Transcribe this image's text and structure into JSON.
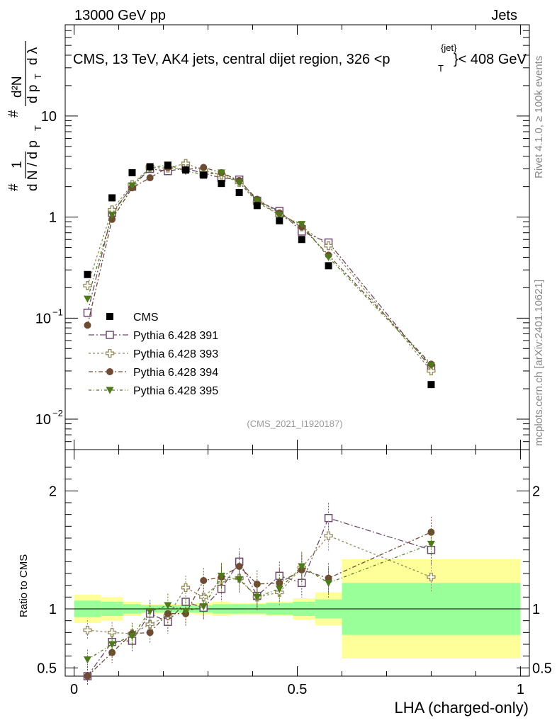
{
  "header": {
    "left": "13000 GeV pp",
    "right": "Jets",
    "title": "CMS, 13 TeV, AK4 jets, central dijet region, 326 <p",
    "title_sub": "T",
    "title_sup": "{jet}",
    "title_end": "}< 408 GeV",
    "rivet": "Rivet 4.1.0, ≥ 100k events",
    "mcplots": "mcplots.cern.ch [arXiv:2401.10621]",
    "analysis_id": "(CMS_2021_I1920187)"
  },
  "chart_data": {
    "type": "scatter",
    "xlabel": "LHA (charged-only)",
    "ylabel_main": "1/(dN/dpT) d²N/(dpT dλ)",
    "ylabel_ratio": "Ratio to CMS",
    "xlim": [
      -0.02,
      1.02
    ],
    "ylim_main": [
      0.005,
      80
    ],
    "ylim_ratio": [
      0.43,
      2.35
    ],
    "x_ticks": [
      "0",
      "0.5",
      "1"
    ],
    "y_ticks_main": [
      "10^-2",
      "10^-1",
      "1",
      "10"
    ],
    "y_ticks_ratio": [
      "0.5",
      "1",
      "2"
    ],
    "x": [
      0.03,
      0.085,
      0.13,
      0.17,
      0.21,
      0.25,
      0.29,
      0.33,
      0.37,
      0.41,
      0.46,
      0.51,
      0.57,
      0.8
    ],
    "bins": [
      [
        0.0,
        0.06
      ],
      [
        0.06,
        0.11
      ],
      [
        0.11,
        0.15
      ],
      [
        0.15,
        0.19
      ],
      [
        0.19,
        0.23
      ],
      [
        0.23,
        0.27
      ],
      [
        0.27,
        0.31
      ],
      [
        0.31,
        0.35
      ],
      [
        0.35,
        0.39
      ],
      [
        0.39,
        0.43
      ],
      [
        0.43,
        0.49
      ],
      [
        0.49,
        0.54
      ],
      [
        0.54,
        0.6
      ],
      [
        0.6,
        1.0
      ]
    ],
    "band_inner": [
      0.07,
      0.06,
      0.04,
      0.03,
      0.03,
      0.03,
      0.03,
      0.04,
      0.04,
      0.04,
      0.05,
      0.06,
      0.08,
      0.22
    ],
    "band_outer": [
      0.12,
      0.1,
      0.06,
      0.04,
      0.04,
      0.04,
      0.05,
      0.06,
      0.05,
      0.05,
      0.06,
      0.09,
      0.14,
      0.42
    ],
    "data": {
      "name": "CMS",
      "values": [
        0.27,
        1.55,
        2.75,
        3.15,
        3.25,
        2.92,
        2.6,
        2.15,
        1.75,
        1.3,
        0.92,
        0.6,
        0.33,
        0.022
      ]
    },
    "series": [
      {
        "name": "Pythia 6.428 391",
        "color": "#6b4a6b",
        "marker": "open-square",
        "dash": "8,3,2,3",
        "values": [
          0.113,
          1.1,
          2.0,
          3.0,
          2.85,
          3.05,
          2.7,
          2.45,
          2.35,
          1.45,
          1.15,
          0.72,
          0.56,
          0.032
        ],
        "ratio": [
          0.35,
          0.72,
          0.73,
          0.96,
          0.89,
          1.06,
          1.01,
          1.17,
          1.4,
          1.11,
          1.28,
          1.22,
          1.77,
          1.5
        ]
      },
      {
        "name": "Pythia 6.428 393",
        "color": "#958a5c",
        "marker": "open-cross",
        "dash": "3,3",
        "values": [
          0.21,
          1.18,
          2.1,
          3.1,
          3.05,
          3.4,
          2.9,
          2.6,
          2.2,
          1.4,
          1.05,
          0.8,
          0.52,
          0.03
        ],
        "ratio": [
          0.82,
          0.8,
          0.79,
          0.87,
          0.94,
          1.18,
          1.1,
          1.24,
          1.26,
          1.1,
          1.14,
          1.35,
          1.62,
          1.27
        ]
      },
      {
        "name": "Pythia 6.428 394",
        "color": "#6e4b33",
        "marker": "filled-circle",
        "dash": "6,3,2,3",
        "values": [
          0.085,
          0.95,
          1.95,
          2.45,
          3.1,
          2.95,
          3.1,
          2.75,
          2.3,
          1.5,
          1.1,
          0.8,
          0.42,
          0.035
        ],
        "ratio": [
          0.3,
          0.63,
          0.79,
          0.8,
          0.96,
          0.96,
          1.24,
          1.27,
          1.36,
          1.21,
          1.22,
          1.33,
          1.26,
          1.65
        ]
      },
      {
        "name": "Pythia 6.428 395",
        "color": "#4f7a1c",
        "marker": "filled-triangle-down",
        "dash": "4,3,1,3",
        "values": [
          0.155,
          1.05,
          2.05,
          3.05,
          3.3,
          2.85,
          2.65,
          2.75,
          2.2,
          1.45,
          1.05,
          0.85,
          0.4,
          0.034
        ],
        "ratio": [
          0.57,
          0.7,
          0.77,
          0.98,
          1.03,
          0.98,
          1.02,
          1.28,
          1.25,
          1.1,
          1.17,
          1.36,
          1.22,
          1.55
        ]
      }
    ]
  }
}
